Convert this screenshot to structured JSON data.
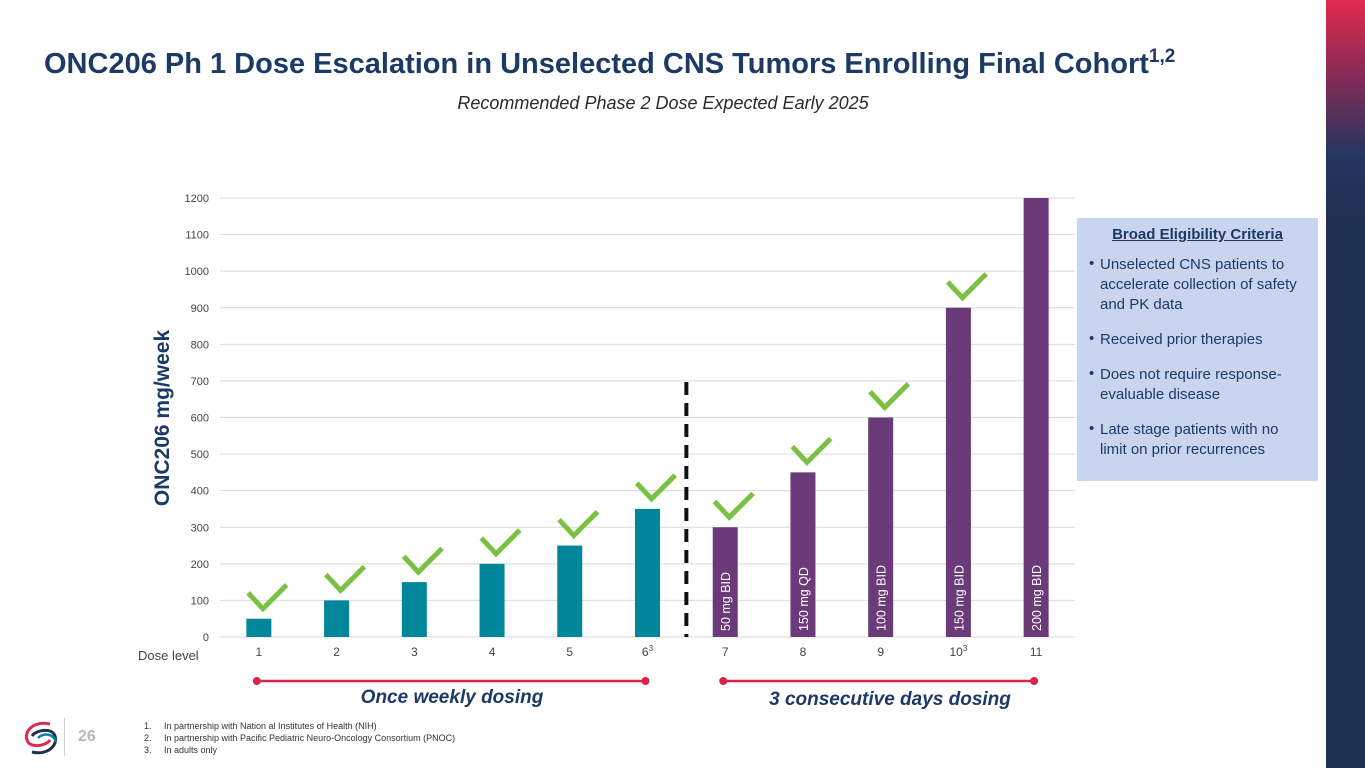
{
  "title": "ONC206 Ph 1 Dose Escalation in Unselected CNS Tumors Enrolling Final Cohort",
  "title_sup": "1,2",
  "subtitle": "Recommended Phase 2 Dose Expected Early 2025",
  "chart_data": {
    "type": "bar",
    "ylabel": "ONC206 mg/week",
    "xlabel": "Dose level",
    "ylim": [
      0,
      1200
    ],
    "yticks": [
      0,
      100,
      200,
      300,
      400,
      500,
      600,
      700,
      800,
      900,
      1000,
      1100,
      1200
    ],
    "categories": [
      "1",
      "2",
      "3",
      "4",
      "5",
      "6",
      "7",
      "8",
      "9",
      "10",
      "11"
    ],
    "category_superscripts": [
      "",
      "",
      "",
      "",
      "",
      "3",
      "",
      "",
      "",
      "3",
      ""
    ],
    "values": [
      50,
      100,
      150,
      200,
      250,
      350,
      300,
      450,
      600,
      900,
      1200
    ],
    "bar_colors": [
      "#00869a",
      "#00869a",
      "#00869a",
      "#00869a",
      "#00869a",
      "#00869a",
      "#6b3a78",
      "#6b3a78",
      "#6b3a78",
      "#6b3a78",
      "#6b3a78"
    ],
    "bar_labels": [
      "",
      "",
      "",
      "",
      "",
      "",
      "50 mg BID",
      "150 mg QD",
      "100 mg BID",
      "150 mg BID",
      "200 mg BID"
    ],
    "completed": [
      true,
      true,
      true,
      true,
      true,
      true,
      true,
      true,
      true,
      true,
      false
    ],
    "grid": true,
    "divider_after_category": "6",
    "ranges": [
      {
        "label": "Once weekly dosing",
        "from": "1",
        "to": "6"
      },
      {
        "label": "3 consecutive days dosing",
        "from": "7",
        "to": "11"
      }
    ]
  },
  "criteria": {
    "heading": "Broad Eligibility Criteria",
    "items": [
      "Unselected CNS patients to accelerate collection of safety and PK data",
      "Received prior therapies",
      "Does not require response-evaluable disease",
      "Late stage patients with no limit on prior recurrences"
    ]
  },
  "page_number": "26",
  "footnotes": [
    {
      "num": "1.",
      "text": "In partnership with Nation al Institutes of Health (NIH)"
    },
    {
      "num": "2.",
      "text": "In partnership with Pacific Pediatric Neuro-Oncology Consortium (PNOC)"
    },
    {
      "num": "3.",
      "text": "In adults only"
    }
  ],
  "colors": {
    "teal": "#00869a",
    "purple": "#6b3a78",
    "check": "#7ac143",
    "range_line": "#d6244a",
    "navy": "#1d3a66"
  }
}
